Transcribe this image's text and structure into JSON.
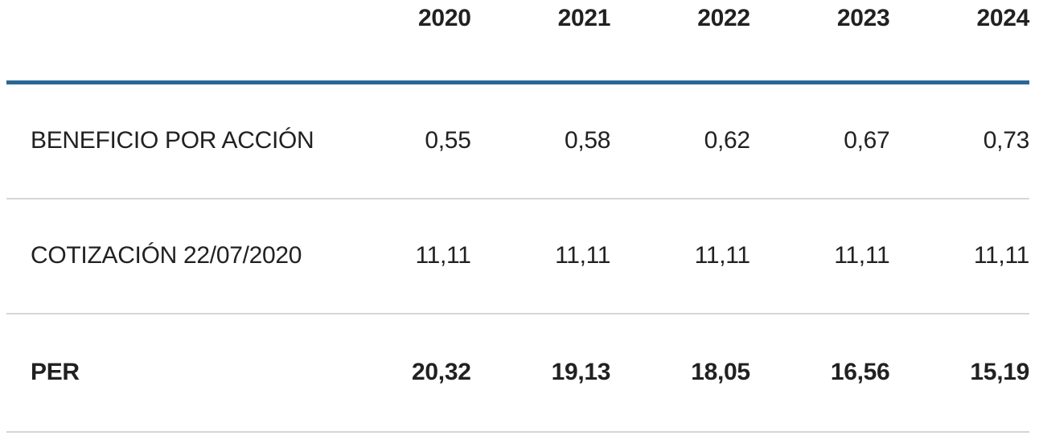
{
  "colors": {
    "accent_blue": "#2a6897",
    "divider_gray": "#d6d6d6",
    "text": "#212121"
  },
  "table": {
    "years": [
      "2020",
      "2021",
      "2022",
      "2023",
      "2024"
    ],
    "rows": [
      {
        "label": "BENEFICIO POR ACCIÓN",
        "values": [
          "0,55",
          "0,58",
          "0,62",
          "0,67",
          "0,73"
        ]
      },
      {
        "label": "COTIZACIÓN 22/07/2020",
        "values": [
          "11,11",
          "11,11",
          "11,11",
          "11,11",
          "11,11"
        ]
      },
      {
        "label": "PER",
        "values": [
          "20,32",
          "19,13",
          "18,05",
          "16,56",
          "15,19"
        ]
      }
    ]
  },
  "chart_data": {
    "type": "table",
    "columns": [
      "",
      "2020",
      "2021",
      "2022",
      "2023",
      "2024"
    ],
    "rows": [
      [
        "BENEFICIO POR ACCIÓN",
        "0,55",
        "0,58",
        "0,62",
        "0,67",
        "0,73"
      ],
      [
        "COTIZACIÓN 22/07/2020",
        "11,11",
        "11,11",
        "11,11",
        "11,11",
        "11,11"
      ],
      [
        "PER",
        "20,32",
        "19,13",
        "18,05",
        "16,56",
        "15,19"
      ]
    ],
    "series": [
      {
        "name": "BENEFICIO POR ACCIÓN",
        "values": [
          0.55,
          0.58,
          0.62,
          0.67,
          0.73
        ]
      },
      {
        "name": "COTIZACIÓN 22/07/2020",
        "values": [
          11.11,
          11.11,
          11.11,
          11.11,
          11.11
        ]
      },
      {
        "name": "PER",
        "values": [
          20.32,
          19.13,
          18.05,
          16.56,
          15.19
        ]
      }
    ],
    "x": [
      2020,
      2021,
      2022,
      2023,
      2024
    ],
    "title": "",
    "decimal_separator": ","
  }
}
